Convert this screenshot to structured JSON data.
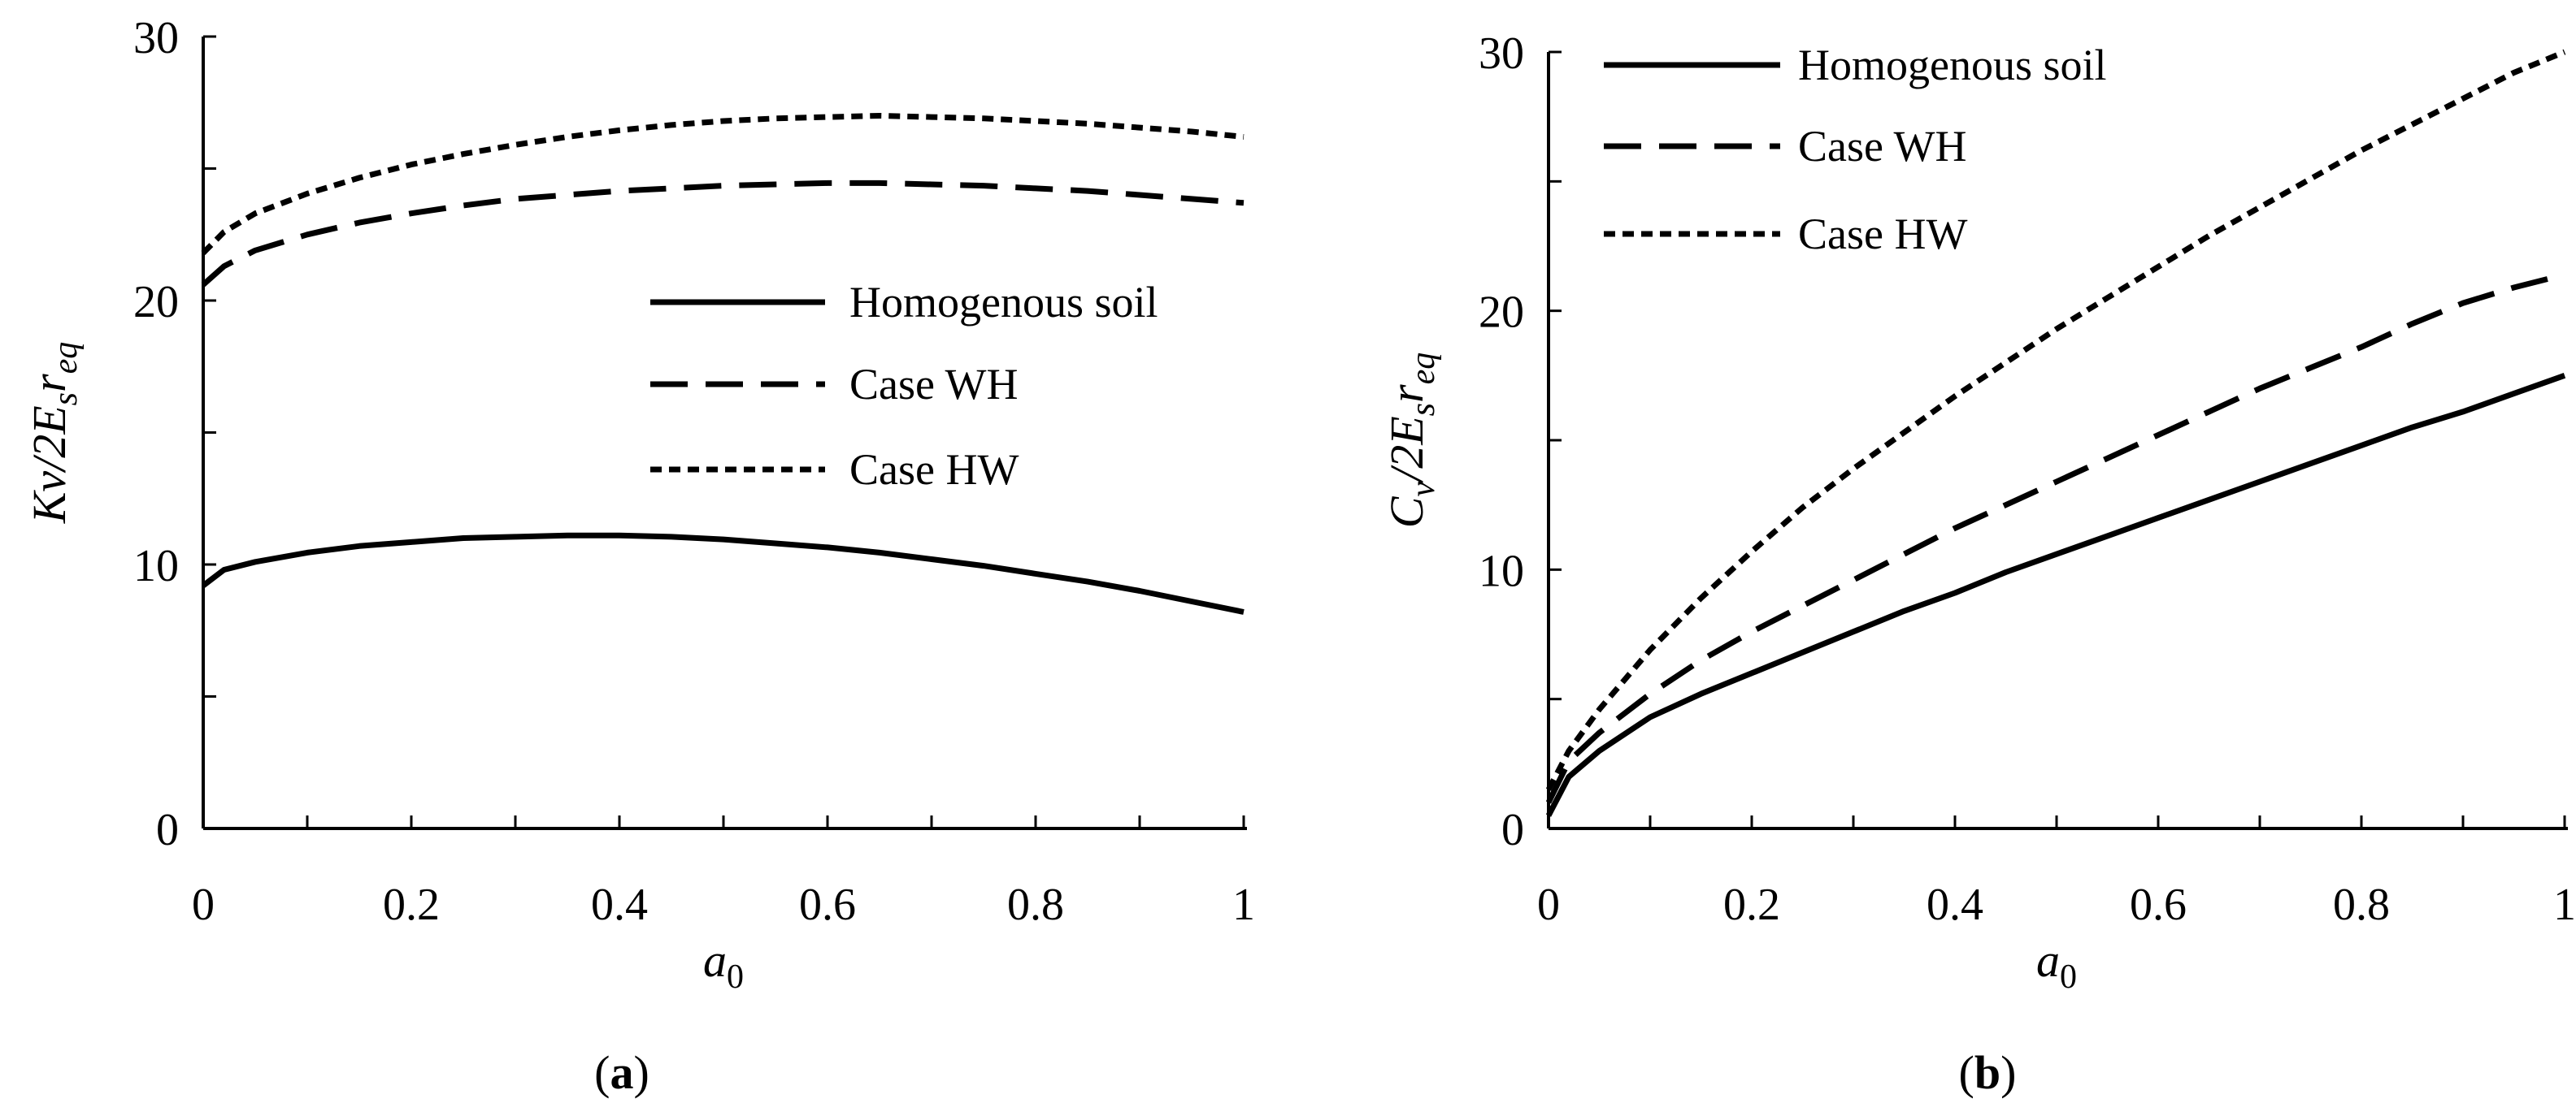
{
  "chart_data": [
    {
      "panel": "(a)",
      "panel_label": {
        "open": "(",
        "letter": "a",
        "close": ")"
      },
      "type": "line",
      "xlabel": {
        "main": "a",
        "sub": "0"
      },
      "ylabel": {
        "main": "Kv/2E",
        "sub1": "s",
        "mid": "r",
        "sub2": "eq"
      },
      "xlim": [
        0,
        1
      ],
      "ylim": [
        0,
        30
      ],
      "xticks": [
        0,
        0.2,
        0.4,
        0.6,
        0.8,
        1
      ],
      "xtick_labels": [
        "0",
        "0.2",
        "0.4",
        "0.6",
        "0.8",
        "1"
      ],
      "yticks": [
        0,
        10,
        20,
        30
      ],
      "ytick_labels": [
        "0",
        "10",
        "20",
        "30"
      ],
      "x": [
        0,
        0.02,
        0.05,
        0.1,
        0.15,
        0.2,
        0.25,
        0.3,
        0.35,
        0.4,
        0.45,
        0.5,
        0.55,
        0.6,
        0.65,
        0.7,
        0.75,
        0.8,
        0.85,
        0.9,
        0.95,
        1.0
      ],
      "legend_position": "center-right",
      "series": [
        {
          "name": "Homogenous soil",
          "style": "solid",
          "values": [
            9.2,
            9.8,
            10.1,
            10.45,
            10.7,
            10.85,
            11.0,
            11.05,
            11.1,
            11.1,
            11.05,
            10.95,
            10.8,
            10.65,
            10.45,
            10.2,
            9.95,
            9.65,
            9.35,
            9.0,
            8.6,
            8.2
          ]
        },
        {
          "name": "Case WH",
          "style": "dashed",
          "values": [
            20.6,
            21.3,
            21.9,
            22.5,
            22.95,
            23.3,
            23.6,
            23.85,
            24.0,
            24.15,
            24.25,
            24.35,
            24.4,
            24.45,
            24.45,
            24.4,
            24.35,
            24.25,
            24.15,
            24.0,
            23.85,
            23.7
          ]
        },
        {
          "name": "Case HW",
          "style": "dotted",
          "values": [
            21.8,
            22.6,
            23.3,
            24.05,
            24.65,
            25.15,
            25.55,
            25.9,
            26.2,
            26.45,
            26.65,
            26.8,
            26.9,
            26.95,
            27.0,
            26.95,
            26.9,
            26.8,
            26.7,
            26.55,
            26.4,
            26.2
          ]
        }
      ]
    },
    {
      "panel": "(b)",
      "panel_label": {
        "open": "(",
        "letter": "b",
        "close": ")"
      },
      "type": "line",
      "xlabel": {
        "main": "a",
        "sub": "0"
      },
      "ylabel": {
        "main": "C",
        "sub1": "v",
        "mid": "/2E",
        "sub2": "s",
        "mid2": "r",
        "sub3": "eq"
      },
      "xlim": [
        0,
        1
      ],
      "ylim": [
        0,
        30
      ],
      "xticks": [
        0,
        0.2,
        0.4,
        0.6,
        0.8,
        1
      ],
      "xtick_labels": [
        "0",
        "0.2",
        "0.4",
        "0.6",
        "0.8",
        "1"
      ],
      "yticks": [
        0,
        10,
        20,
        30
      ],
      "ytick_labels": [
        "0",
        "10",
        "20",
        "30"
      ],
      "x": [
        0,
        0.02,
        0.05,
        0.1,
        0.15,
        0.2,
        0.25,
        0.3,
        0.35,
        0.4,
        0.45,
        0.5,
        0.55,
        0.6,
        0.65,
        0.7,
        0.75,
        0.8,
        0.85,
        0.9,
        0.95,
        1.0
      ],
      "legend_position": "top-left",
      "series": [
        {
          "name": "Homogenous soil",
          "style": "solid",
          "values": [
            0.5,
            2.0,
            3.0,
            4.3,
            5.2,
            6.0,
            6.8,
            7.6,
            8.4,
            9.1,
            9.9,
            10.6,
            11.3,
            12.0,
            12.7,
            13.4,
            14.1,
            14.8,
            15.5,
            16.1,
            16.8,
            17.5
          ]
        },
        {
          "name": "Case WH",
          "style": "dashed",
          "values": [
            1.0,
            2.6,
            3.7,
            5.2,
            6.5,
            7.6,
            8.6,
            9.6,
            10.6,
            11.6,
            12.5,
            13.4,
            14.3,
            15.2,
            16.1,
            17.0,
            17.8,
            18.6,
            19.5,
            20.3,
            20.9,
            21.4
          ]
        },
        {
          "name": "Case HW",
          "style": "dotted",
          "values": [
            1.5,
            3.0,
            4.6,
            6.9,
            8.9,
            10.7,
            12.4,
            13.9,
            15.3,
            16.7,
            18.0,
            19.3,
            20.5,
            21.7,
            22.9,
            24.0,
            25.1,
            26.2,
            27.2,
            28.2,
            29.2,
            30.0
          ]
        }
      ]
    }
  ]
}
